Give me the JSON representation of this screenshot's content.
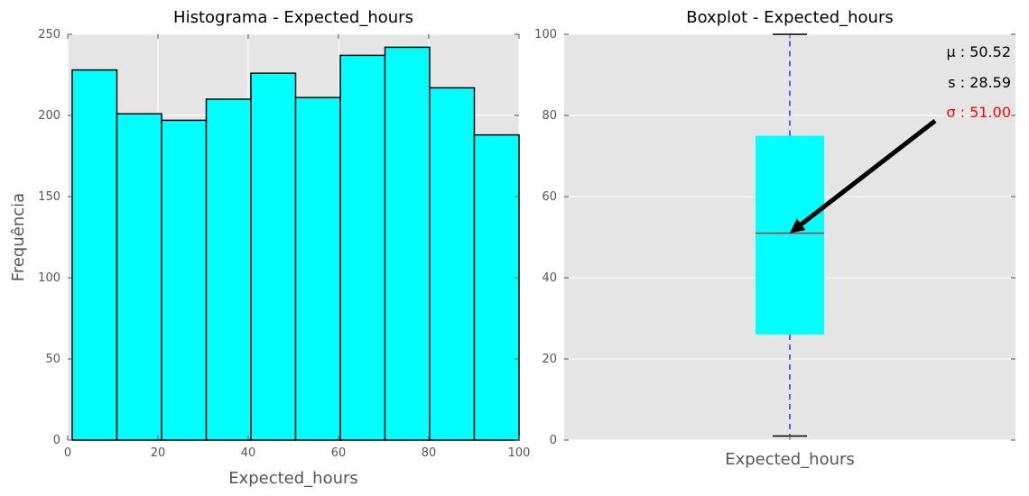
{
  "chart_data": [
    {
      "type": "bar",
      "title": "Histograma - Expected_hours",
      "xlabel": "Expected_hours",
      "ylabel": "Frequência",
      "xlim": [
        0,
        100
      ],
      "ylim": [
        0,
        250
      ],
      "xticks": [
        "0",
        "20",
        "40",
        "60",
        "80",
        "100"
      ],
      "yticks": [
        "0",
        "50",
        "100",
        "150",
        "200",
        "250"
      ],
      "bins": [
        {
          "start": 1,
          "end": 10.9,
          "value": 228
        },
        {
          "start": 10.9,
          "end": 20.8,
          "value": 201
        },
        {
          "start": 20.8,
          "end": 30.7,
          "value": 197
        },
        {
          "start": 30.7,
          "end": 40.6,
          "value": 210
        },
        {
          "start": 40.6,
          "end": 50.5,
          "value": 226
        },
        {
          "start": 50.5,
          "end": 60.4,
          "value": 211
        },
        {
          "start": 60.4,
          "end": 70.3,
          "value": 237
        },
        {
          "start": 70.3,
          "end": 80.2,
          "value": 242
        },
        {
          "start": 80.2,
          "end": 90.1,
          "value": 217
        },
        {
          "start": 90.1,
          "end": 100,
          "value": 188
        }
      ],
      "bar_color": "#00ffff",
      "edge_color": "#000000",
      "background": "#e5e5e5",
      "grid": true
    },
    {
      "type": "boxplot",
      "title": "Boxplot - Expected_hours",
      "categories": [
        "Expected_hours"
      ],
      "ylim": [
        0,
        100
      ],
      "yticks": [
        "0",
        "20",
        "40",
        "60",
        "80",
        "100"
      ],
      "box": {
        "min": 1,
        "q1": 26,
        "median": 51,
        "q3": 75,
        "max": 100
      },
      "box_color": "#00ffff",
      "median_color": "#d62728",
      "whisker_color": "#0000ff",
      "background": "#e5e5e5",
      "grid": true,
      "annotations": {
        "mean_label": "μ : 50.52",
        "std_label": "s : 28.59",
        "median_label": "σ : 51.00",
        "median_label_color": "#ff0000",
        "arrow_points_to": {
          "category": "Expected_hours",
          "y": 51
        }
      }
    }
  ]
}
